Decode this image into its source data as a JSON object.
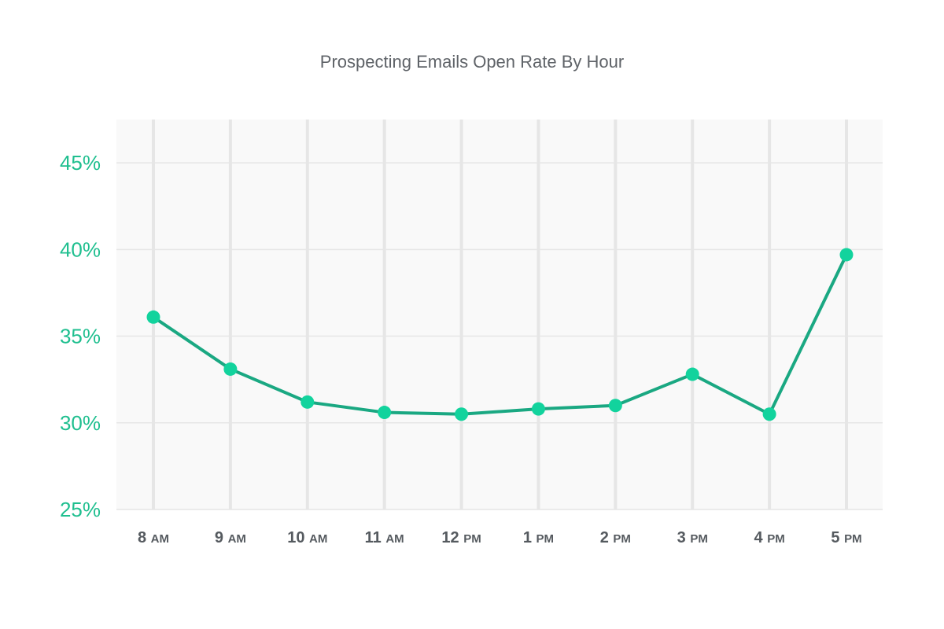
{
  "chart_data": {
    "type": "line",
    "title": "Prospecting Emails Open Rate By Hour",
    "xlabel": "",
    "ylabel": "",
    "categories": [
      "8 AM",
      "9 AM",
      "10 AM",
      "11 AM",
      "12 PM",
      "1 PM",
      "2 PM",
      "3 PM",
      "4 PM",
      "5 PM"
    ],
    "category_parts": [
      {
        "num": "8",
        "suffix": "AM"
      },
      {
        "num": "9",
        "suffix": "AM"
      },
      {
        "num": "10",
        "suffix": "AM"
      },
      {
        "num": "11",
        "suffix": "AM"
      },
      {
        "num": "12",
        "suffix": "PM"
      },
      {
        "num": "1",
        "suffix": "PM"
      },
      {
        "num": "2",
        "suffix": "PM"
      },
      {
        "num": "3",
        "suffix": "PM"
      },
      {
        "num": "4",
        "suffix": "PM"
      },
      {
        "num": "5",
        "suffix": "PM"
      }
    ],
    "series": [
      {
        "values": [
          36.1,
          33.1,
          31.2,
          30.6,
          30.5,
          30.8,
          31.0,
          32.8,
          30.5,
          39.7
        ]
      }
    ],
    "ylim": [
      25,
      47.5
    ],
    "yticks": [
      25,
      30,
      35,
      40,
      45
    ],
    "ytick_labels": [
      "25%",
      "30%",
      "35%",
      "40%",
      "45%"
    ],
    "grid": true,
    "colors": {
      "line": "#1aa882",
      "marker": "#12d39d",
      "ytick": "#1fbf8f",
      "plot_background": "#f9f9f9",
      "gridline": "#e6e6e6"
    }
  }
}
